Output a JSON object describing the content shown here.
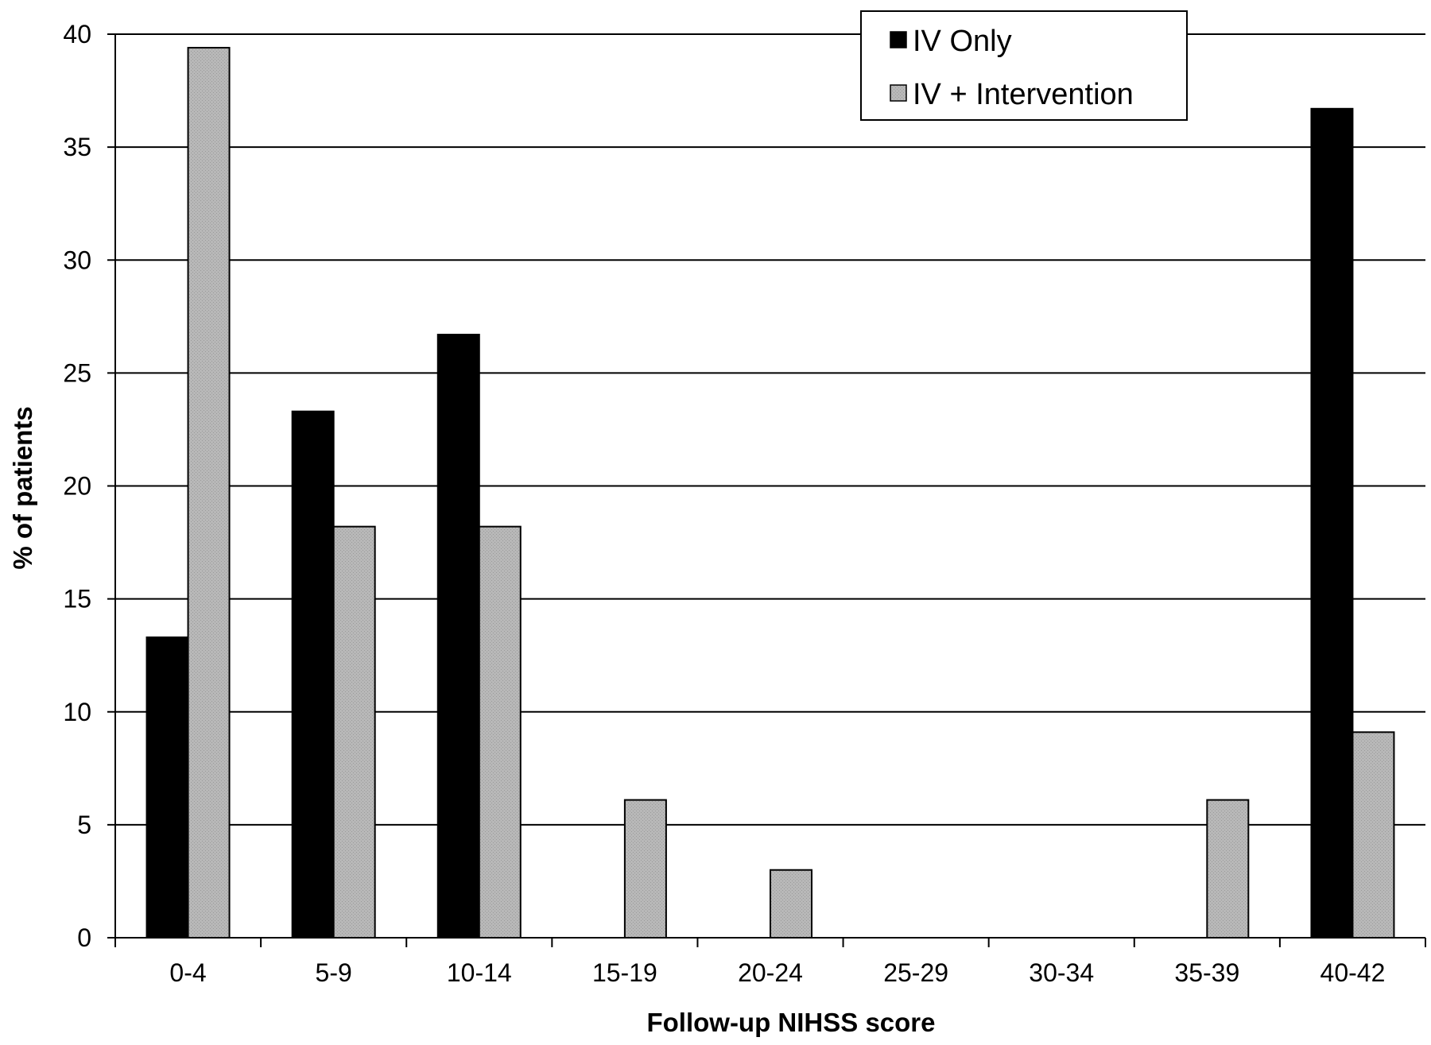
{
  "chart_data": {
    "type": "bar",
    "title": "",
    "xlabel": "Follow-up NIHSS score",
    "ylabel": "% of patients",
    "ylim": [
      0,
      40
    ],
    "yticks": [
      "0",
      "5",
      "10",
      "15",
      "20",
      "25",
      "30",
      "35",
      "40"
    ],
    "grid": "horizontal",
    "legend_position": "top-right",
    "categories": [
      "0-4",
      "5-9",
      "10-14",
      "15-19",
      "20-24",
      "25-29",
      "30-34",
      "35-39",
      "40-42"
    ],
    "series": [
      {
        "name": "IV Only",
        "color": "#000000",
        "values": [
          13.3,
          23.3,
          26.7,
          0,
          0,
          0,
          0,
          0,
          36.7
        ]
      },
      {
        "name": "IV + Intervention",
        "color": "#b3b3b3",
        "values": [
          39.4,
          18.2,
          18.2,
          6.1,
          3.0,
          0,
          0,
          6.1,
          9.1
        ]
      }
    ]
  }
}
